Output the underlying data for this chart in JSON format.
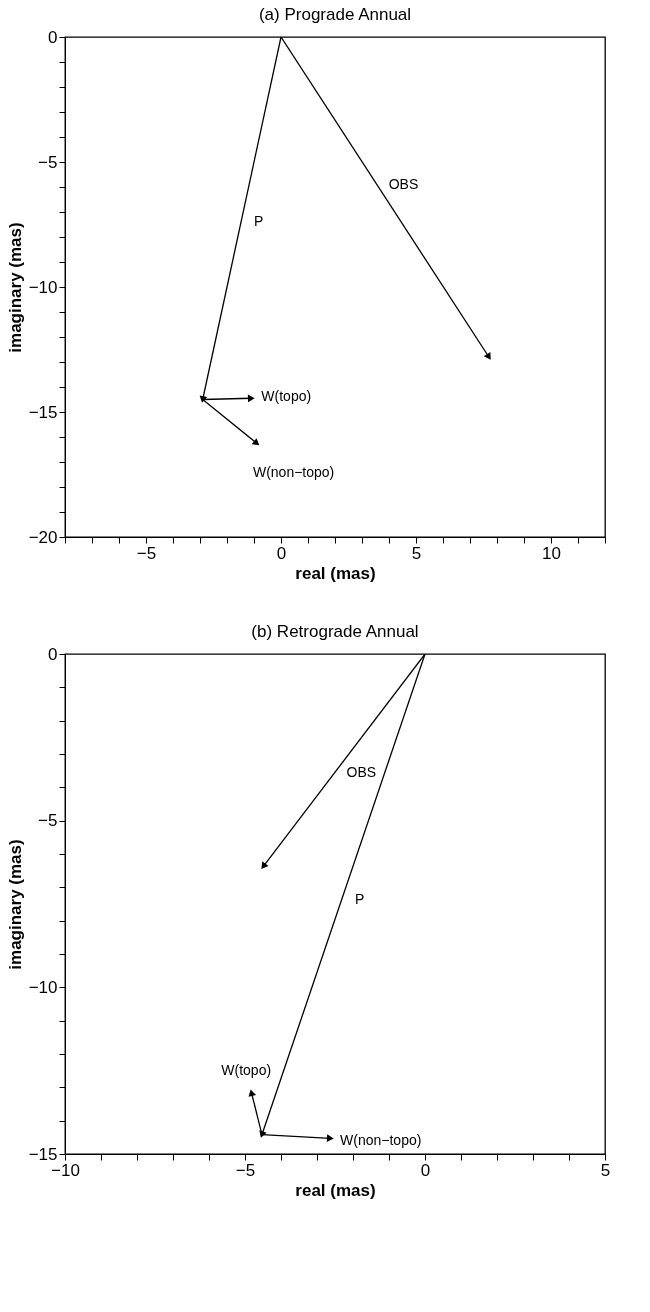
{
  "chart_data": [
    {
      "type": "line",
      "title": "(a) Prograde Annual",
      "xlabel": "real (mas)",
      "ylabel": "imaginary (mas)",
      "xlim": [
        -8,
        12
      ],
      "ylim": [
        -20,
        0
      ],
      "xticks": [
        {
          "value": -8,
          "label": null
        },
        {
          "value": -7,
          "label": null
        },
        {
          "value": -6,
          "label": null
        },
        -5,
        {
          "value": -4,
          "label": null
        },
        {
          "value": -3,
          "label": null
        },
        {
          "value": -2,
          "label": null
        },
        {
          "value": -1,
          "label": null
        },
        0,
        {
          "value": 1,
          "label": null
        },
        {
          "value": 2,
          "label": null
        },
        {
          "value": 3,
          "label": null
        },
        {
          "value": 4,
          "label": null
        },
        5,
        {
          "value": 6,
          "label": null
        },
        {
          "value": 7,
          "label": null
        },
        {
          "value": 8,
          "label": null
        },
        {
          "value": 9,
          "label": null
        },
        10,
        {
          "value": 11,
          "label": null
        },
        {
          "value": 12,
          "label": null
        }
      ],
      "yticks": [
        -20,
        {
          "value": -19,
          "label": null
        },
        {
          "value": -18,
          "label": null
        },
        {
          "value": -17,
          "label": null
        },
        {
          "value": -16,
          "label": null
        },
        -15,
        {
          "value": -14,
          "label": null
        },
        {
          "value": -13,
          "label": null
        },
        {
          "value": -12,
          "label": null
        },
        {
          "value": -11,
          "label": null
        },
        -10,
        {
          "value": -9,
          "label": null
        },
        {
          "value": -8,
          "label": null
        },
        {
          "value": -7,
          "label": null
        },
        {
          "value": -6,
          "label": null
        },
        -5,
        {
          "value": -4,
          "label": null
        },
        {
          "value": -3,
          "label": null
        },
        {
          "value": -2,
          "label": null
        },
        {
          "value": -1,
          "label": null
        },
        0
      ],
      "series": [
        {
          "name": "P",
          "color": "#000000",
          "x": [
            0,
            -2.9
          ],
          "values": [
            0,
            -14.5
          ]
        },
        {
          "name": "OBS",
          "color": "#000000",
          "x": [
            0,
            7.7
          ],
          "values": [
            0,
            -12.8
          ]
        },
        {
          "name": "W(topo)",
          "color": "#000000",
          "x": [
            -2.9,
            -1.1
          ],
          "values": [
            -14.5,
            -14.45
          ]
        },
        {
          "name": "W(non−topo)",
          "color": "#000000",
          "x": [
            -2.9,
            -0.9
          ],
          "values": [
            -14.5,
            -16.25
          ]
        }
      ]
    },
    {
      "type": "line",
      "title": "(b) Retrograde Annual",
      "xlabel": "real (mas)",
      "ylabel": "imaginary (mas)",
      "xlim": [
        -10,
        5
      ],
      "ylim": [
        -15,
        0
      ],
      "xticks": [
        -10,
        {
          "value": -9,
          "label": null
        },
        {
          "value": -8,
          "label": null
        },
        {
          "value": -7,
          "label": null
        },
        {
          "value": -6,
          "label": null
        },
        -5,
        {
          "value": -4,
          "label": null
        },
        {
          "value": -3,
          "label": null
        },
        {
          "value": -2,
          "label": null
        },
        {
          "value": -1,
          "label": null
        },
        0,
        {
          "value": 1,
          "label": null
        },
        {
          "value": 2,
          "label": null
        },
        {
          "value": 3,
          "label": null
        },
        {
          "value": 4,
          "label": null
        },
        5
      ],
      "yticks": [
        -15,
        {
          "value": -14,
          "label": null
        },
        {
          "value": -13,
          "label": null
        },
        {
          "value": -12,
          "label": null
        },
        {
          "value": -11,
          "label": null
        },
        -10,
        {
          "value": -9,
          "label": null
        },
        {
          "value": -8,
          "label": null
        },
        {
          "value": -7,
          "label": null
        },
        {
          "value": -6,
          "label": null
        },
        -5,
        {
          "value": -4,
          "label": null
        },
        {
          "value": -3,
          "label": null
        },
        {
          "value": -2,
          "label": null
        },
        {
          "value": -1,
          "label": null
        },
        0
      ],
      "series": [
        {
          "name": "P",
          "color": "#000000",
          "x": [
            0,
            -4.53
          ],
          "values": [
            0,
            -14.42
          ]
        },
        {
          "name": "OBS",
          "color": "#000000",
          "x": [
            0,
            -4.49
          ],
          "values": [
            0,
            -6.37
          ]
        },
        {
          "name": "W(topo)",
          "color": "#000000",
          "x": [
            -4.53,
            -4.82
          ],
          "values": [
            -14.42,
            -13.16
          ]
        },
        {
          "name": "W(non−topo)",
          "color": "#000000",
          "x": [
            -4.53,
            -2.63
          ],
          "values": [
            -14.42,
            -14.53
          ]
        }
      ]
    }
  ]
}
